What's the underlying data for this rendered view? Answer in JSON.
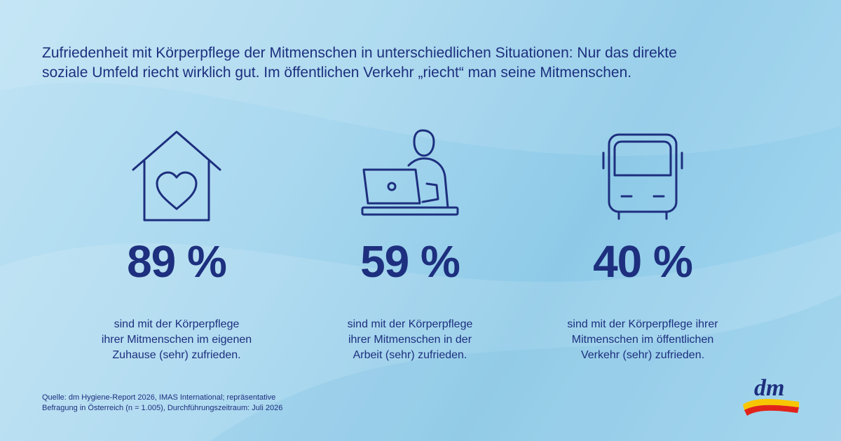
{
  "headline": {
    "line1": "Zufriedenheit mit Körperpflege der Mitmenschen in unterschiedlichen Situationen: Nur das direkte",
    "line2": "soziale Umfeld riecht wirklich gut. Im öffentlichen Verkehr „riecht“ man seine Mitmenschen."
  },
  "stats": [
    {
      "icon": "home-heart-icon",
      "value": "89 %",
      "desc": [
        "sind mit der Körperpflege",
        "ihrer Mitmenschen im eigenen",
        "Zuhause (sehr) zufrieden."
      ]
    },
    {
      "icon": "laptop-worker-icon",
      "value": "59 %",
      "desc": [
        "sind mit der Körperpflege",
        "ihrer Mitmenschen in der",
        "Arbeit (sehr) zufrieden."
      ]
    },
    {
      "icon": "bus-icon",
      "value": "40 %",
      "desc": [
        "sind mit der Körperpflege ihrer",
        "Mitmenschen im öffentlichen",
        "Verkehr (sehr) zufrieden."
      ]
    }
  ],
  "source": {
    "line1": "Quelle: dm Hygiene-Report 2026, IMAS International; repräsentative",
    "line2": "Befragung in Österreich (n = 1.005), Durchführungszeitraum: Juli 2026"
  },
  "logo": {
    "text": "dm"
  },
  "colors": {
    "text": "#1d2f7e",
    "logo_yellow": "#f7c600",
    "logo_red": "#e2231a"
  }
}
